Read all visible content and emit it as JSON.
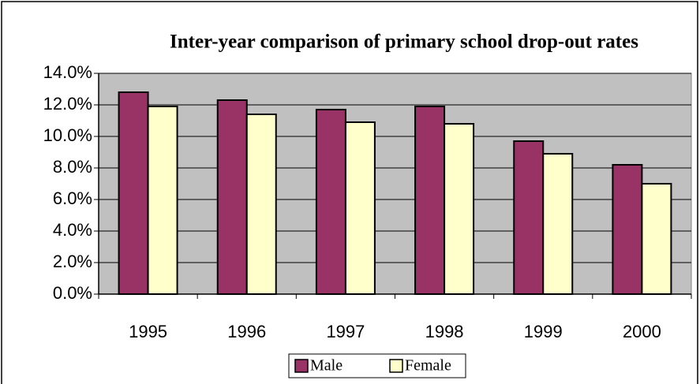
{
  "chart_data": {
    "type": "bar",
    "title": "Inter-year comparison of primary school drop-out rates",
    "categories": [
      "1995",
      "1996",
      "1997",
      "1998",
      "1999",
      "2000"
    ],
    "series": [
      {
        "name": "Male",
        "color": "#993366",
        "values": [
          12.8,
          12.3,
          11.7,
          11.9,
          9.7,
          8.2
        ]
      },
      {
        "name": "Female",
        "color": "#FFFFCC",
        "values": [
          11.9,
          11.4,
          10.9,
          10.8,
          8.9,
          7.0
        ]
      }
    ],
    "ylim": [
      0,
      14
    ],
    "yticks": [
      {
        "value": 0,
        "label": "0.0%"
      },
      {
        "value": 2,
        "label": "2.0%"
      },
      {
        "value": 4,
        "label": "4.0%"
      },
      {
        "value": 6,
        "label": "6.0%"
      },
      {
        "value": 8,
        "label": "8.0%"
      },
      {
        "value": 10,
        "label": "10.0%"
      },
      {
        "value": 12,
        "label": "12.0%"
      },
      {
        "value": 14,
        "label": "14.0%"
      }
    ],
    "grid": true,
    "plot_background": "#C0C0C0",
    "legend": "bottom"
  }
}
